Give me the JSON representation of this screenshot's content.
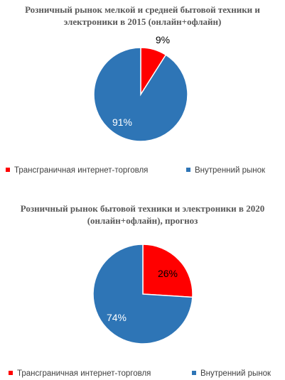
{
  "colors": {
    "cross_border": "#ff0000",
    "domestic": "#2e75b6",
    "text": "#595959",
    "label_dark": "#000000",
    "label_light": "#ffffff"
  },
  "chart_data": [
    {
      "type": "pie",
      "title": [
        "Розничный рынок мелкой и средней бытовой техники и",
        "электроники в 2015 (онлайн+офлайн)"
      ],
      "categories": [
        "Трансграничная интернет-торговля",
        "Внутренний рынок"
      ],
      "values": [
        9,
        91
      ],
      "data_labels": [
        "9%",
        "91%"
      ],
      "legend_position": "bottom"
    },
    {
      "type": "pie",
      "title": [
        "Розничный рынок бытовой техники и электроники в 2020",
        "(онлайн+офлайн), прогноз"
      ],
      "categories": [
        "Трансграничная интернет-торговля",
        "Внутренний рынок"
      ],
      "values": [
        26,
        74
      ],
      "data_labels": [
        "26%",
        "74%"
      ],
      "legend_position": "bottom"
    }
  ]
}
